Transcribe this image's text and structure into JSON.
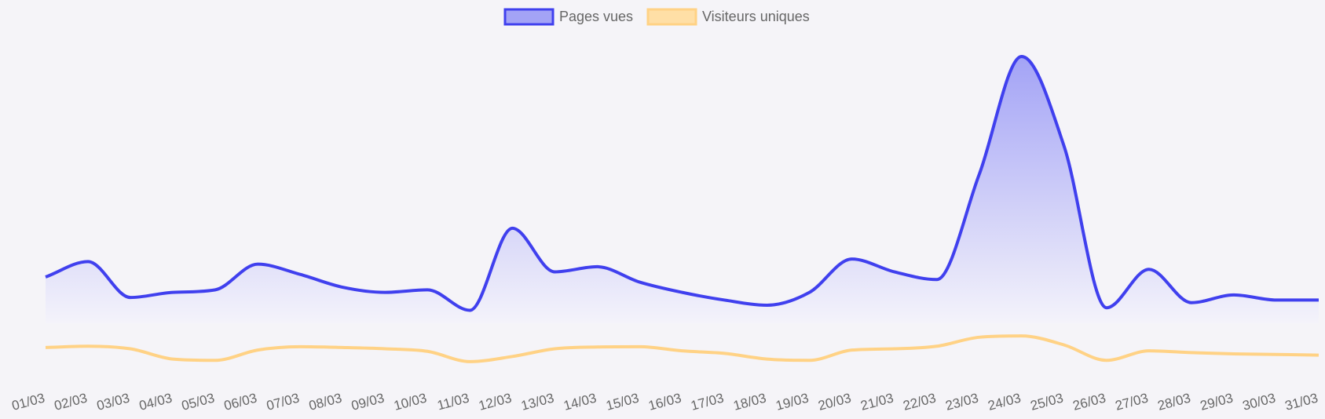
{
  "chart_data": {
    "type": "area",
    "categories": [
      "01/03",
      "02/03",
      "03/03",
      "04/03",
      "05/03",
      "06/03",
      "07/03",
      "08/03",
      "09/03",
      "10/03",
      "11/03",
      "12/03",
      "13/03",
      "14/03",
      "15/03",
      "16/03",
      "17/03",
      "18/03",
      "19/03",
      "20/03",
      "21/03",
      "22/03",
      "23/03",
      "24/03",
      "25/03",
      "26/03",
      "27/03",
      "28/03",
      "29/03",
      "30/03",
      "31/03"
    ],
    "series": [
      {
        "name": "Pages vues",
        "color": "#4040ee",
        "fill_top": "#a3a3f6",
        "fill_bottom": "#f4f3fa",
        "filled": true,
        "values": [
          180,
          240,
          100,
          120,
          130,
          230,
          190,
          140,
          120,
          130,
          50,
          370,
          200,
          220,
          160,
          120,
          90,
          70,
          120,
          250,
          200,
          170,
          580,
          1040,
          690,
          60,
          210,
          80,
          110,
          90,
          90
        ]
      },
      {
        "name": "Visiteurs uniques",
        "color": "#ffd285",
        "filled": false,
        "values": [
          -95,
          -90,
          -100,
          -140,
          -145,
          -105,
          -92,
          -95,
          -100,
          -110,
          -150,
          -130,
          -100,
          -93,
          -92,
          -108,
          -118,
          -140,
          -145,
          -105,
          -100,
          -90,
          -55,
          -50,
          -85,
          -145,
          -108,
          -115,
          -120,
          -122,
          -125
        ]
      }
    ],
    "ylim": [
      -230,
      1150
    ],
    "grid": false,
    "legend": "top-center"
  }
}
